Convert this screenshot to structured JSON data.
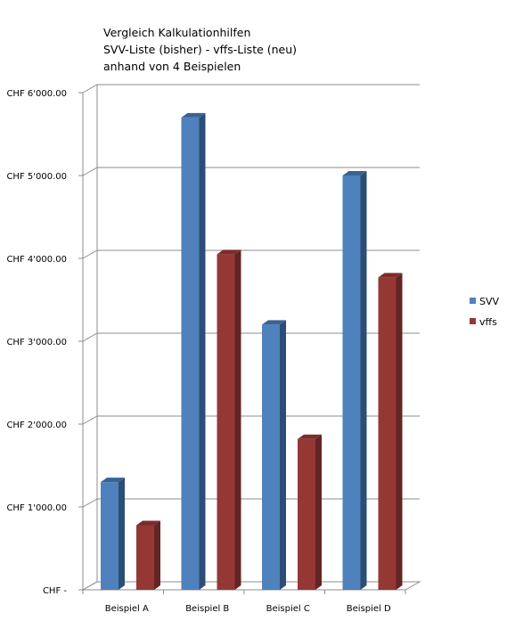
{
  "chart_data": {
    "type": "bar",
    "title": [
      "Vergleich Kalkulationhilfen",
      "SVV-Liste (bisher) - vffs-Liste (neu)",
      "anhand von 4 Beispielen"
    ],
    "categories": [
      "Beispiel A",
      "Beispiel B",
      "Beispiel C",
      "Beispiel D"
    ],
    "series": [
      {
        "name": "SVV",
        "values": [
          1300,
          5700,
          3200,
          5000
        ],
        "color": "#4f81bd",
        "side_color": "#2c4d75",
        "top_color": "#3a6394"
      },
      {
        "name": "vffs",
        "values": [
          780,
          4050,
          1820,
          3770
        ],
        "color": "#953735",
        "side_color": "#632523",
        "top_color": "#7a2d2b"
      }
    ],
    "ylim": [
      0,
      6000
    ],
    "yticks": [
      0,
      1000,
      2000,
      3000,
      4000,
      5000,
      6000
    ],
    "ytick_labels": [
      "CHF -",
      "CHF 1'000.00",
      "CHF 2'000.00",
      "CHF 3'000.00",
      "CHF 4'000.00",
      "CHF 5'000.00",
      "CHF 6'000.00"
    ],
    "xlabel": "",
    "ylabel": "",
    "grid": true,
    "legend": "right"
  }
}
